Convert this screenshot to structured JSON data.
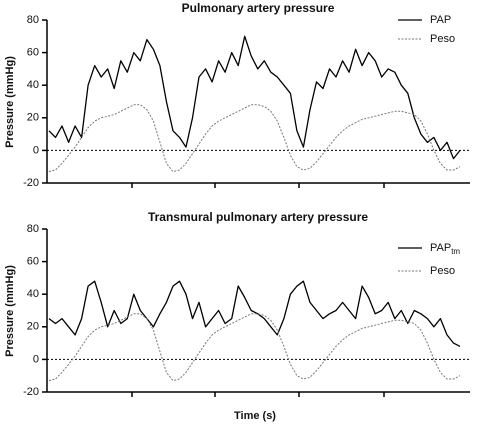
{
  "chart_data": [
    {
      "type": "line",
      "title": "Pulmonary artery pressure",
      "ylabel": "Pressure (mmHg)",
      "ylim": [
        -20,
        80
      ],
      "yticks": [
        -20,
        0,
        20,
        40,
        60,
        80
      ],
      "reference_line": 0,
      "series": [
        {
          "name": "PAP",
          "color": "#000000",
          "dash": false,
          "values": [
            12,
            8,
            15,
            5,
            15,
            8,
            40,
            52,
            45,
            50,
            38,
            55,
            48,
            60,
            55,
            68,
            62,
            52,
            30,
            12,
            8,
            2,
            20,
            45,
            50,
            42,
            55,
            48,
            60,
            52,
            70,
            58,
            50,
            55,
            48,
            45,
            40,
            35,
            12,
            2,
            25,
            42,
            38,
            50,
            45,
            55,
            48,
            62,
            52,
            60,
            55,
            45,
            50,
            48,
            40,
            35,
            20,
            10,
            5,
            8,
            0,
            5,
            -5,
            0
          ]
        },
        {
          "name": "Peso",
          "color": "#777777",
          "dash": true,
          "values": [
            -13,
            -12,
            -8,
            -3,
            2,
            8,
            14,
            18,
            20,
            21,
            22,
            24,
            26,
            28,
            28,
            25,
            18,
            5,
            -8,
            -13,
            -12,
            -8,
            -2,
            4,
            10,
            15,
            18,
            20,
            22,
            24,
            26,
            28,
            28,
            27,
            24,
            18,
            8,
            -3,
            -10,
            -12,
            -11,
            -7,
            -2,
            3,
            8,
            12,
            15,
            17,
            19,
            20,
            21,
            22,
            23,
            24,
            24,
            23,
            22,
            18,
            10,
            0,
            -8,
            -12,
            -12,
            -10
          ]
        }
      ]
    },
    {
      "type": "line",
      "title": "Transmural pulmonary artery pressure",
      "ylabel": "Pressure (mmHg)",
      "xlabel": "Time (s)",
      "ylim": [
        -20,
        80
      ],
      "yticks": [
        -20,
        0,
        20,
        40,
        60,
        80
      ],
      "reference_line": 0,
      "series": [
        {
          "name": "PAP",
          "subscript": "tm",
          "color": "#000000",
          "dash": false,
          "values": [
            25,
            22,
            25,
            20,
            15,
            25,
            45,
            48,
            35,
            20,
            30,
            22,
            25,
            40,
            30,
            25,
            20,
            28,
            35,
            45,
            48,
            40,
            25,
            35,
            20,
            25,
            30,
            22,
            25,
            45,
            38,
            30,
            28,
            25,
            20,
            15,
            25,
            40,
            45,
            48,
            35,
            30,
            25,
            28,
            30,
            35,
            30,
            25,
            45,
            38,
            28,
            30,
            35,
            25,
            30,
            22,
            30,
            28,
            25,
            20,
            25,
            15,
            10,
            8
          ]
        },
        {
          "name": "Peso",
          "color": "#777777",
          "dash": true,
          "values": [
            -13,
            -12,
            -8,
            -3,
            2,
            8,
            14,
            18,
            20,
            21,
            22,
            24,
            26,
            28,
            28,
            25,
            18,
            5,
            -8,
            -13,
            -12,
            -8,
            -2,
            4,
            10,
            15,
            18,
            20,
            22,
            24,
            26,
            28,
            28,
            27,
            24,
            18,
            8,
            -3,
            -10,
            -12,
            -11,
            -7,
            -2,
            3,
            8,
            12,
            15,
            17,
            19,
            20,
            21,
            22,
            23,
            24,
            24,
            23,
            22,
            18,
            10,
            0,
            -8,
            -12,
            -12,
            -10
          ]
        }
      ]
    }
  ]
}
